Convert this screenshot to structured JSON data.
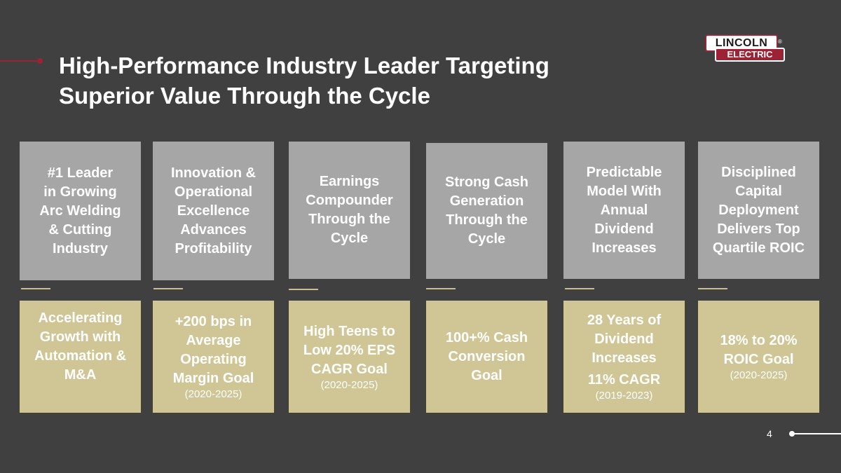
{
  "title": {
    "line1": "High-Performance Industry Leader Targeting",
    "line2": "Superior Value Through the Cycle"
  },
  "logo": {
    "top": "LINCOLN",
    "bottom": "ELECTRIC",
    "reg": "®"
  },
  "colors": {
    "background": "#404040",
    "top_box": "#a6a6a6",
    "bottom_box": "#cfc595",
    "accent": "#9b2335"
  },
  "columns": [
    {
      "top": [
        "#1 Leader",
        "in Growing",
        "Arc Welding",
        "& Cutting",
        "Industry"
      ],
      "bottom": [
        "Accelerating",
        "Growth with",
        "Automation &",
        "M&A"
      ],
      "period": ""
    },
    {
      "top": [
        "Innovation &",
        "Operational",
        "Excellence",
        "Advances",
        "Profitability"
      ],
      "bottom": [
        "+200 bps in",
        "Average",
        "Operating",
        "Margin Goal"
      ],
      "period": "(2020-2025)"
    },
    {
      "top": [
        "Earnings",
        "Compounder",
        "Through the",
        "Cycle"
      ],
      "bottom": [
        "High Teens to",
        "Low 20% EPS",
        "CAGR Goal"
      ],
      "period": "(2020-2025)"
    },
    {
      "top": [
        "Strong Cash",
        "Generation",
        "Through the",
        "Cycle"
      ],
      "bottom": [
        "100+% Cash",
        "Conversion",
        "Goal"
      ],
      "period": ""
    },
    {
      "top": [
        "Predictable",
        "Model With",
        "Annual",
        "Dividend",
        "Increases"
      ],
      "bottom": [
        "28 Years of",
        "Dividend",
        "Increases",
        "11% CAGR"
      ],
      "period": "(2019-2023)"
    },
    {
      "top": [
        "Disciplined",
        "Capital",
        "Deployment",
        "Delivers Top",
        "Quartile ROIC"
      ],
      "bottom": [
        "18% to 20%",
        "ROIC Goal"
      ],
      "period": "(2020-2025)"
    }
  ],
  "page_number": "4"
}
